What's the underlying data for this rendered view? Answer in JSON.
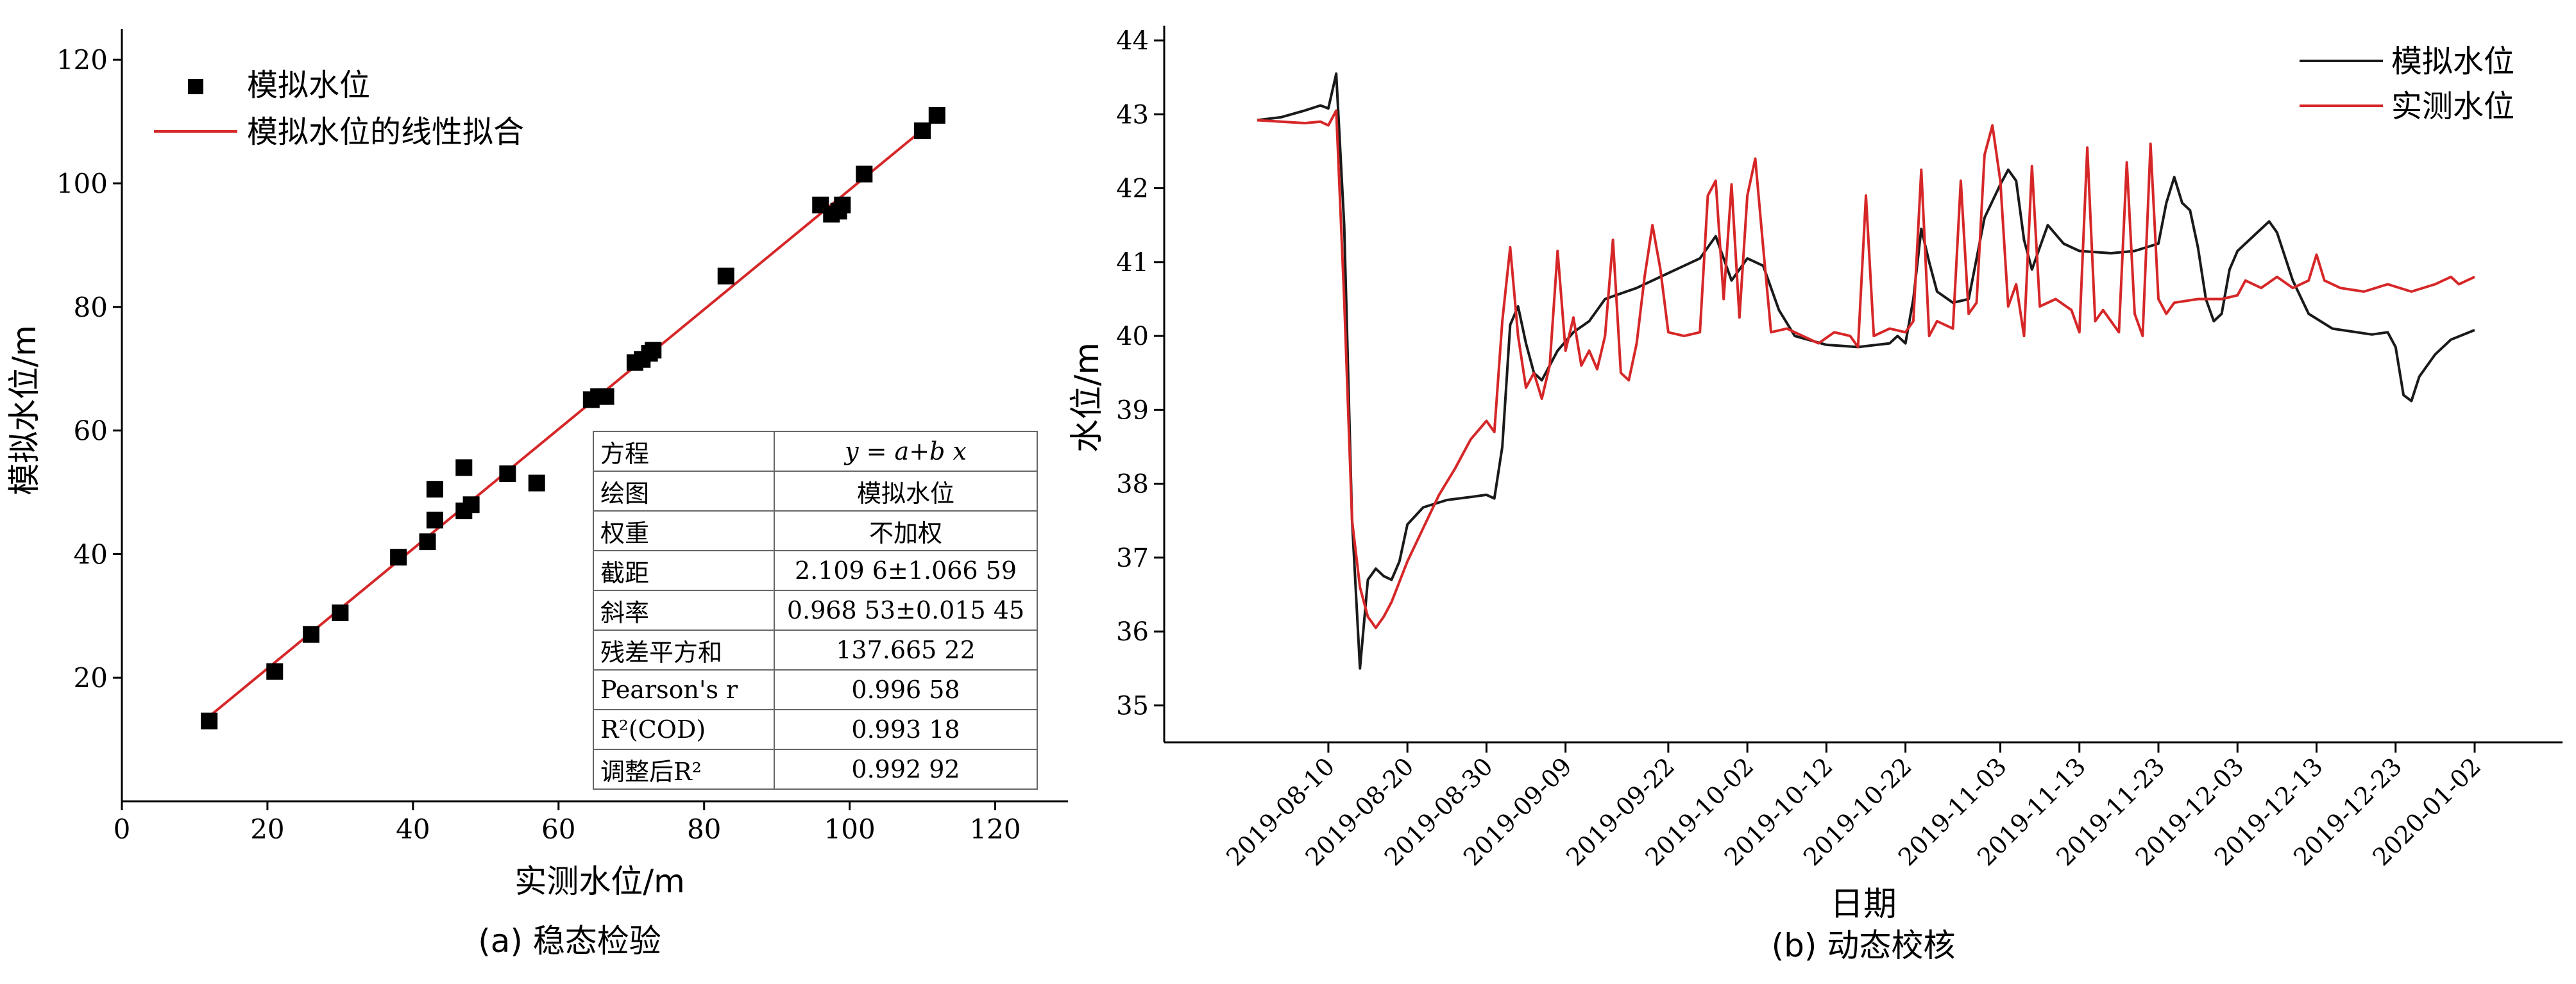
{
  "chart_data": [
    {
      "type": "scatter",
      "caption": "(a) 稳态检验",
      "xlabel": "实测水位/m",
      "ylabel": "模拟水位/m",
      "xlim": [
        0,
        130
      ],
      "ylim": [
        0,
        125
      ],
      "x_ticks": [
        0,
        20,
        40,
        60,
        80,
        100,
        120
      ],
      "y_ticks": [
        20,
        40,
        60,
        80,
        100,
        120
      ],
      "grid": false,
      "legend_position": "top-left",
      "series": [
        {
          "name": "模拟水位",
          "kind": "scatter",
          "marker": "square",
          "color": "#000000",
          "points": [
            [
              12,
              13
            ],
            [
              21,
              21
            ],
            [
              26,
              27
            ],
            [
              30,
              30.5
            ],
            [
              38,
              39.5
            ],
            [
              42,
              42
            ],
            [
              43,
              45.5
            ],
            [
              43,
              50.5
            ],
            [
              47,
              47
            ],
            [
              47,
              54
            ],
            [
              48,
              48
            ],
            [
              53,
              53
            ],
            [
              57,
              51.5
            ],
            [
              64.5,
              65
            ],
            [
              65.5,
              65.5
            ],
            [
              66.5,
              65.5
            ],
            [
              70.5,
              71
            ],
            [
              71.5,
              71.5
            ],
            [
              72.5,
              72.5
            ],
            [
              73,
              73
            ],
            [
              83,
              85
            ],
            [
              96,
              96.5
            ],
            [
              97.5,
              95
            ],
            [
              98.5,
              95.5
            ],
            [
              99,
              96.5
            ],
            [
              102,
              101.5
            ],
            [
              110,
              108.5
            ],
            [
              112,
              111
            ]
          ]
        },
        {
          "name": "模拟水位的线性拟合",
          "kind": "line",
          "color": "#d62728",
          "intercept": 2.1096,
          "slope": 0.96853,
          "x_range": [
            11,
            113
          ]
        }
      ],
      "fit_table": [
        {
          "label": "方程",
          "value": "y = a+b x"
        },
        {
          "label": "绘图",
          "value": "模拟水位"
        },
        {
          "label": "权重",
          "value": "不加权"
        },
        {
          "label": "截距",
          "value": "2.109 6±1.066 59"
        },
        {
          "label": "斜率",
          "value": "0.968 53±0.015 45"
        },
        {
          "label": "残差平方和",
          "value": "137.665 22"
        },
        {
          "label": "Pearson's r",
          "value": "0.996 58"
        },
        {
          "label": "R²(COD)",
          "value": "0.993 18"
        },
        {
          "label": "调整后R²",
          "value": "0.992 92"
        }
      ]
    },
    {
      "type": "line",
      "caption": "(b) 动态校核",
      "xlabel": "日期",
      "ylabel": "水位/m",
      "x_start": "2019-08-01",
      "x_end": "2020-01-02",
      "x_ticks": [
        "2019-08-10",
        "2019-08-20",
        "2019-08-30",
        "2019-09-09",
        "2019-09-22",
        "2019-10-02",
        "2019-10-12",
        "2019-10-22",
        "2019-11-03",
        "2019-11-13",
        "2019-11-23",
        "2019-12-03",
        "2019-12-13",
        "2019-12-23",
        "2020-01-02"
      ],
      "ylim": [
        34.5,
        44.2
      ],
      "y_ticks": [
        35,
        36,
        37,
        38,
        39,
        40,
        41,
        42,
        43,
        44
      ],
      "grid": false,
      "legend_position": "top-right",
      "series": [
        {
          "name": "模拟水位",
          "color": "#1a1a1a",
          "points": [
            [
              "2019-08-01",
              42.92
            ],
            [
              "2019-08-04",
              42.96
            ],
            [
              "2019-08-07",
              43.05
            ],
            [
              "2019-08-09",
              43.12
            ],
            [
              "2019-08-10",
              43.08
            ],
            [
              "2019-08-11",
              43.55
            ],
            [
              "2019-08-12",
              41.5
            ],
            [
              "2019-08-13",
              37.5
            ],
            [
              "2019-08-14",
              35.5
            ],
            [
              "2019-08-15",
              36.7
            ],
            [
              "2019-08-16",
              36.85
            ],
            [
              "2019-08-17",
              36.75
            ],
            [
              "2019-08-18",
              36.7
            ],
            [
              "2019-08-19",
              36.95
            ],
            [
              "2019-08-20",
              37.45
            ],
            [
              "2019-08-22",
              37.68
            ],
            [
              "2019-08-25",
              37.78
            ],
            [
              "2019-08-28",
              37.82
            ],
            [
              "2019-08-30",
              37.85
            ],
            [
              "2019-08-31",
              37.8
            ],
            [
              "2019-09-01",
              38.5
            ],
            [
              "2019-09-02",
              40.15
            ],
            [
              "2019-09-03",
              40.4
            ],
            [
              "2019-09-04",
              39.9
            ],
            [
              "2019-09-05",
              39.5
            ],
            [
              "2019-09-06",
              39.4
            ],
            [
              "2019-09-08",
              39.8
            ],
            [
              "2019-09-10",
              40.05
            ],
            [
              "2019-09-12",
              40.2
            ],
            [
              "2019-09-14",
              40.5
            ],
            [
              "2019-09-18",
              40.65
            ],
            [
              "2019-09-22",
              40.85
            ],
            [
              "2019-09-26",
              41.05
            ],
            [
              "2019-09-28",
              41.35
            ],
            [
              "2019-09-30",
              40.75
            ],
            [
              "2019-10-02",
              41.05
            ],
            [
              "2019-10-04",
              40.95
            ],
            [
              "2019-10-06",
              40.35
            ],
            [
              "2019-10-08",
              40.0
            ],
            [
              "2019-10-12",
              39.88
            ],
            [
              "2019-10-16",
              39.85
            ],
            [
              "2019-10-20",
              39.9
            ],
            [
              "2019-10-21",
              40.0
            ],
            [
              "2019-10-22",
              39.9
            ],
            [
              "2019-10-23",
              40.5
            ],
            [
              "2019-10-24",
              41.45
            ],
            [
              "2019-10-25",
              41.0
            ],
            [
              "2019-10-26",
              40.6
            ],
            [
              "2019-10-28",
              40.45
            ],
            [
              "2019-10-30",
              40.5
            ],
            [
              "2019-11-01",
              41.6
            ],
            [
              "2019-11-03",
              42.05
            ],
            [
              "2019-11-04",
              42.25
            ],
            [
              "2019-11-05",
              42.1
            ],
            [
              "2019-11-06",
              41.3
            ],
            [
              "2019-11-07",
              40.9
            ],
            [
              "2019-11-08",
              41.2
            ],
            [
              "2019-11-09",
              41.5
            ],
            [
              "2019-11-11",
              41.25
            ],
            [
              "2019-11-13",
              41.15
            ],
            [
              "2019-11-17",
              41.12
            ],
            [
              "2019-11-20",
              41.15
            ],
            [
              "2019-11-23",
              41.25
            ],
            [
              "2019-11-24",
              41.8
            ],
            [
              "2019-11-25",
              42.15
            ],
            [
              "2019-11-26",
              41.8
            ],
            [
              "2019-11-27",
              41.7
            ],
            [
              "2019-11-28",
              41.2
            ],
            [
              "2019-11-29",
              40.5
            ],
            [
              "2019-11-30",
              40.2
            ],
            [
              "2019-12-01",
              40.3
            ],
            [
              "2019-12-02",
              40.9
            ],
            [
              "2019-12-03",
              41.15
            ],
            [
              "2019-12-05",
              41.35
            ],
            [
              "2019-12-07",
              41.55
            ],
            [
              "2019-12-08",
              41.4
            ],
            [
              "2019-12-10",
              40.75
            ],
            [
              "2019-12-12",
              40.3
            ],
            [
              "2019-12-15",
              40.1
            ],
            [
              "2019-12-20",
              40.02
            ],
            [
              "2019-12-22",
              40.05
            ],
            [
              "2019-12-23",
              39.85
            ],
            [
              "2019-12-24",
              39.2
            ],
            [
              "2019-12-25",
              39.12
            ],
            [
              "2019-12-26",
              39.45
            ],
            [
              "2019-12-28",
              39.75
            ],
            [
              "2019-12-30",
              39.95
            ],
            [
              "2020-01-02",
              40.08
            ]
          ]
        },
        {
          "name": "实测水位",
          "color": "#d62728",
          "points": [
            [
              "2019-08-01",
              42.92
            ],
            [
              "2019-08-04",
              42.9
            ],
            [
              "2019-08-07",
              42.88
            ],
            [
              "2019-08-09",
              42.9
            ],
            [
              "2019-08-10",
              42.85
            ],
            [
              "2019-08-11",
              43.05
            ],
            [
              "2019-08-12",
              40.5
            ],
            [
              "2019-08-13",
              37.5
            ],
            [
              "2019-08-14",
              36.6
            ],
            [
              "2019-08-15",
              36.2
            ],
            [
              "2019-08-16",
              36.05
            ],
            [
              "2019-08-17",
              36.2
            ],
            [
              "2019-08-18",
              36.4
            ],
            [
              "2019-08-20",
              36.95
            ],
            [
              "2019-08-22",
              37.4
            ],
            [
              "2019-08-24",
              37.85
            ],
            [
              "2019-08-26",
              38.2
            ],
            [
              "2019-08-28",
              38.6
            ],
            [
              "2019-08-30",
              38.85
            ],
            [
              "2019-08-31",
              38.7
            ],
            [
              "2019-09-01",
              40.2
            ],
            [
              "2019-09-02",
              41.2
            ],
            [
              "2019-09-03",
              40.0
            ],
            [
              "2019-09-04",
              39.3
            ],
            [
              "2019-09-05",
              39.5
            ],
            [
              "2019-09-06",
              39.15
            ],
            [
              "2019-09-07",
              39.6
            ],
            [
              "2019-09-08",
              41.15
            ],
            [
              "2019-09-09",
              39.8
            ],
            [
              "2019-09-10",
              40.25
            ],
            [
              "2019-09-11",
              39.6
            ],
            [
              "2019-09-12",
              39.8
            ],
            [
              "2019-09-13",
              39.55
            ],
            [
              "2019-09-14",
              40.0
            ],
            [
              "2019-09-15",
              41.3
            ],
            [
              "2019-09-16",
              39.5
            ],
            [
              "2019-09-17",
              39.4
            ],
            [
              "2019-09-18",
              39.9
            ],
            [
              "2019-09-19",
              40.8
            ],
            [
              "2019-09-20",
              41.5
            ],
            [
              "2019-09-21",
              40.9
            ],
            [
              "2019-09-22",
              40.05
            ],
            [
              "2019-09-24",
              40.0
            ],
            [
              "2019-09-26",
              40.05
            ],
            [
              "2019-09-27",
              41.9
            ],
            [
              "2019-09-28",
              42.1
            ],
            [
              "2019-09-29",
              40.5
            ],
            [
              "2019-09-30",
              42.05
            ],
            [
              "2019-10-01",
              40.25
            ],
            [
              "2019-10-02",
              41.9
            ],
            [
              "2019-10-03",
              42.4
            ],
            [
              "2019-10-04",
              41.2
            ],
            [
              "2019-10-05",
              40.05
            ],
            [
              "2019-10-07",
              40.1
            ],
            [
              "2019-10-09",
              40.0
            ],
            [
              "2019-10-11",
              39.9
            ],
            [
              "2019-10-13",
              40.05
            ],
            [
              "2019-10-15",
              40.0
            ],
            [
              "2019-10-16",
              39.85
            ],
            [
              "2019-10-17",
              41.9
            ],
            [
              "2019-10-18",
              40.0
            ],
            [
              "2019-10-20",
              40.1
            ],
            [
              "2019-10-22",
              40.05
            ],
            [
              "2019-10-23",
              40.2
            ],
            [
              "2019-10-24",
              42.25
            ],
            [
              "2019-10-25",
              40.0
            ],
            [
              "2019-10-26",
              40.2
            ],
            [
              "2019-10-28",
              40.1
            ],
            [
              "2019-10-29",
              42.1
            ],
            [
              "2019-10-30",
              40.3
            ],
            [
              "2019-10-31",
              40.45
            ],
            [
              "2019-11-01",
              42.45
            ],
            [
              "2019-11-02",
              42.85
            ],
            [
              "2019-11-03",
              42.1
            ],
            [
              "2019-11-04",
              40.4
            ],
            [
              "2019-11-05",
              40.7
            ],
            [
              "2019-11-06",
              40.0
            ],
            [
              "2019-11-07",
              42.3
            ],
            [
              "2019-11-08",
              40.4
            ],
            [
              "2019-11-10",
              40.5
            ],
            [
              "2019-11-12",
              40.35
            ],
            [
              "2019-11-13",
              40.05
            ],
            [
              "2019-11-14",
              42.55
            ],
            [
              "2019-11-15",
              40.2
            ],
            [
              "2019-11-16",
              40.35
            ],
            [
              "2019-11-18",
              40.05
            ],
            [
              "2019-11-19",
              42.35
            ],
            [
              "2019-11-20",
              40.3
            ],
            [
              "2019-11-21",
              40.0
            ],
            [
              "2019-11-22",
              42.6
            ],
            [
              "2019-11-23",
              40.5
            ],
            [
              "2019-11-24",
              40.3
            ],
            [
              "2019-11-25",
              40.45
            ],
            [
              "2019-11-28",
              40.5
            ],
            [
              "2019-12-01",
              40.5
            ],
            [
              "2019-12-03",
              40.55
            ],
            [
              "2019-12-04",
              40.75
            ],
            [
              "2019-12-06",
              40.65
            ],
            [
              "2019-12-08",
              40.8
            ],
            [
              "2019-12-10",
              40.65
            ],
            [
              "2019-12-12",
              40.75
            ],
            [
              "2019-12-13",
              41.1
            ],
            [
              "2019-12-14",
              40.75
            ],
            [
              "2019-12-16",
              40.65
            ],
            [
              "2019-12-19",
              40.6
            ],
            [
              "2019-12-22",
              40.7
            ],
            [
              "2019-12-25",
              40.6
            ],
            [
              "2019-12-28",
              40.7
            ],
            [
              "2019-12-30",
              40.8
            ],
            [
              "2019-12-31",
              40.7
            ],
            [
              "2020-01-02",
              40.8
            ]
          ]
        }
      ]
    }
  ]
}
